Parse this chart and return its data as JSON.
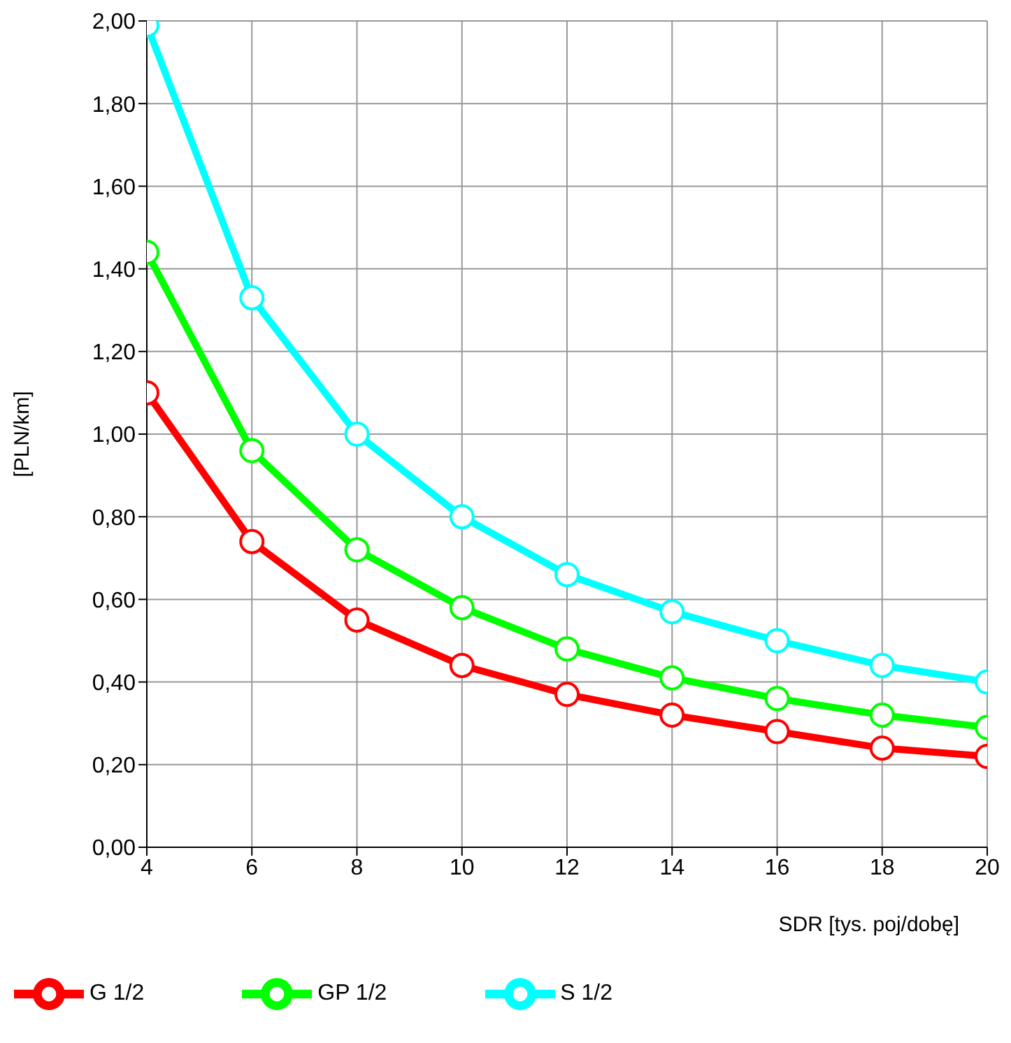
{
  "chart_data": {
    "type": "line",
    "xlabel": "SDR [tys. poj/dobę]",
    "ylabel": "[PLN/km]",
    "x": [
      4,
      6,
      8,
      10,
      12,
      14,
      16,
      18,
      20
    ],
    "series": [
      {
        "name": "S 1/2",
        "color": "#00ffff",
        "values": [
          1.99,
          1.33,
          1.0,
          0.8,
          0.66,
          0.57,
          0.5,
          0.44,
          0.4
        ]
      },
      {
        "name": "GP 1/2",
        "color": "#00ff00",
        "values": [
          1.44,
          0.96,
          0.72,
          0.58,
          0.48,
          0.41,
          0.36,
          0.32,
          0.29
        ]
      },
      {
        "name": "G 1/2",
        "color": "#ff0000",
        "values": [
          1.1,
          0.74,
          0.55,
          0.44,
          0.37,
          0.32,
          0.28,
          0.24,
          0.22
        ]
      }
    ],
    "xlim": [
      4,
      20
    ],
    "xticks": [
      4,
      6,
      8,
      10,
      12,
      14,
      16,
      18,
      20
    ],
    "ylim": [
      0,
      2
    ],
    "yticks": [
      {
        "value": 0,
        "label": "0,00"
      },
      {
        "value": 0.2,
        "label": "0,20"
      },
      {
        "value": 0.4,
        "label": "0,40"
      },
      {
        "value": 0.6,
        "label": "0,60"
      },
      {
        "value": 0.8,
        "label": "0,80"
      },
      {
        "value": 1,
        "label": "1,00"
      },
      {
        "value": 1.2,
        "label": "1,20"
      },
      {
        "value": 1.4,
        "label": "1,40"
      },
      {
        "value": 1.6,
        "label": "1,60"
      },
      {
        "value": 1.8,
        "label": "1,80"
      },
      {
        "value": 2,
        "label": "2,00"
      }
    ],
    "grid": true,
    "legend": "bottom left",
    "marker": "circle",
    "line_style": "solid"
  }
}
